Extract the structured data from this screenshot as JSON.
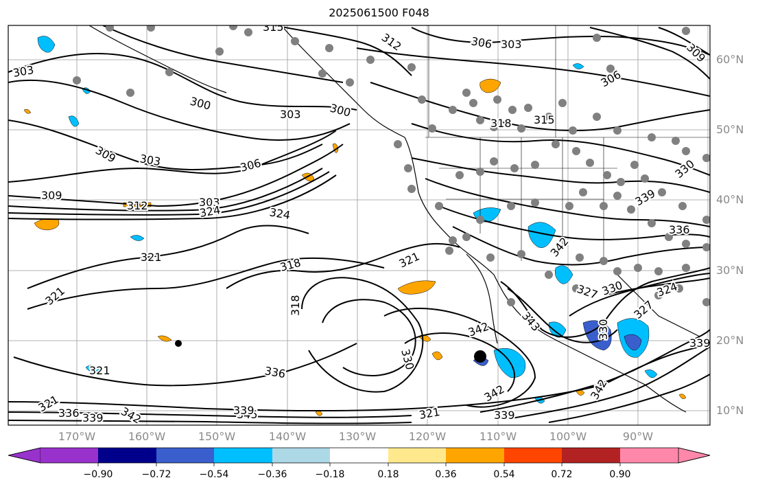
{
  "title": "2025061500 F048",
  "lat_labels": [
    "60°N",
    "50°N",
    "40°N",
    "30°N",
    "20°N",
    "10°N"
  ],
  "lon_labels": [
    "170°W",
    "160°W",
    "150°W",
    "140°W",
    "130°W",
    "120°W",
    "110°W",
    "100°W",
    "90°W"
  ],
  "contour_labels": [
    "303",
    "309",
    "300",
    "303",
    "300",
    "303",
    "306",
    "303",
    "306",
    "312",
    "315",
    "318",
    "315",
    "309",
    "303",
    "306",
    "309",
    "312",
    "324",
    "324",
    "321",
    "318",
    "321",
    "321",
    "318",
    "330",
    "342",
    "343",
    "339",
    "321",
    "342",
    "321",
    "336",
    "330",
    "327",
    "330",
    "324",
    "339",
    "336",
    "339",
    "342",
    "345",
    "321",
    "336",
    "339",
    "342",
    "342",
    "339",
    "327",
    "330"
  ],
  "colorbar": {
    "ticks": [
      "−0.90",
      "−0.72",
      "−0.54",
      "−0.36",
      "−0.18",
      "0.18",
      "0.36",
      "0.54",
      "0.72",
      "0.90"
    ],
    "colors": [
      "#9932cc",
      "#00008b",
      "#3a5fcd",
      "#00bfff",
      "#add8e6",
      "#ffffff",
      "#ffe98c",
      "#ffa500",
      "#ff4500",
      "#b22222",
      "#ff88aa"
    ]
  },
  "colors": {
    "contour": "#000000",
    "station": "#808080",
    "grid": "#9a9a9a",
    "coast": "#000000",
    "positive_fill": "#ffa500",
    "negative_fill": "#00bfff"
  }
}
